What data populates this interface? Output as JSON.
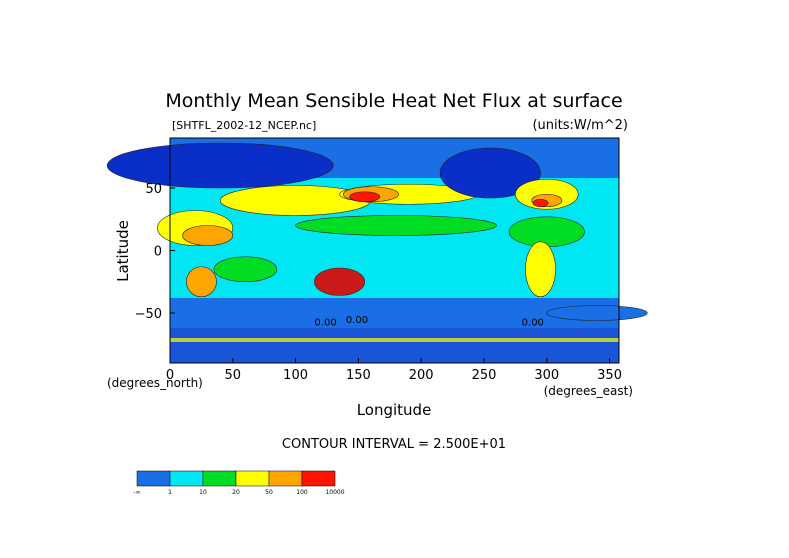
{
  "chart_data": {
    "type": "heatmap",
    "title": "Monthly Mean Sensible Heat Net Flux at surface",
    "file_label": "[SHTFL_2002-12_NCEP.nc]",
    "units_label": "(units:W/m^2)",
    "xlabel": "Longitude",
    "ylabel": "Latitude",
    "x_units": "(degrees_east)",
    "y_units": "(degrees_north)",
    "xlim": [
      0,
      357.5
    ],
    "ylim": [
      -90,
      90
    ],
    "x_ticks": [
      "0",
      "50",
      "100",
      "150",
      "200",
      "250",
      "300",
      "350"
    ],
    "y_ticks": [
      "50",
      "0",
      "−50"
    ],
    "contour_interval": "CONTOUR INTERVAL = 2.500E+01",
    "contour_labels": [
      "0.00",
      "0.00",
      "0.00"
    ],
    "colorbar": {
      "levels": [
        "-∞",
        "1",
        "10",
        "20",
        "50",
        "100",
        "10000"
      ],
      "colors": [
        "#1a6fe6",
        "#00e6f2",
        "#00dd22",
        "#ffff00",
        "#ffa500",
        "#ff1400"
      ]
    },
    "map_colors": {
      "ocean_low": "#1a6fe6",
      "ocean_mid": "#00e6f2",
      "mild": "#00dd22",
      "warm": "#ffff00",
      "hot": "#ffa500",
      "hottest": "#ff1400",
      "arctic": "#0a2ec8",
      "australia": "#cc1a1a"
    }
  }
}
